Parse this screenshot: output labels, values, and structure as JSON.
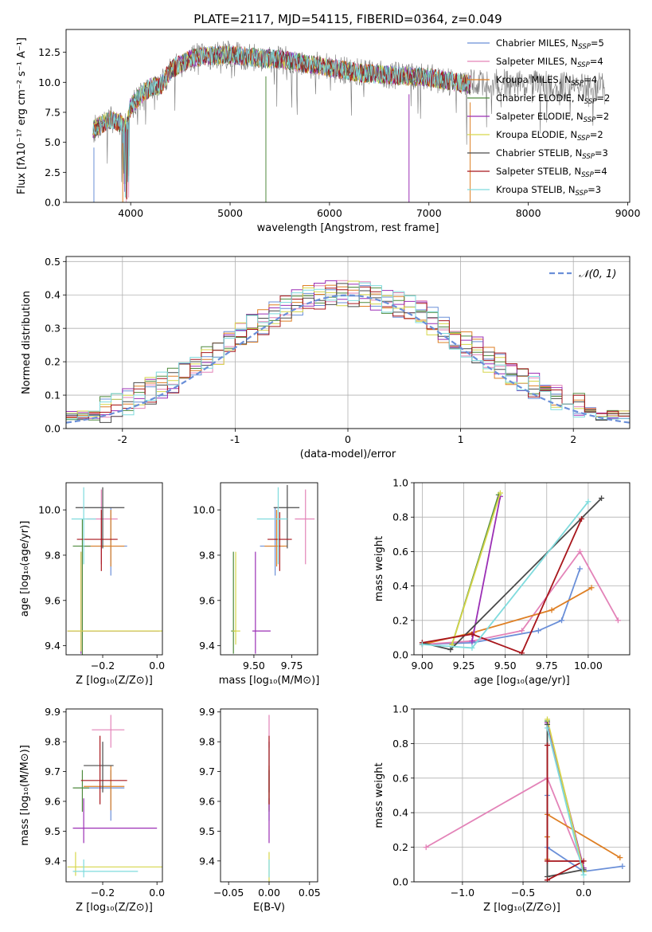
{
  "colors": [
    "#6a8fd8",
    "#e383b8",
    "#de7f24",
    "#4e8a3c",
    "#9b2fb5",
    "#d6d64a",
    "#4a4a4a",
    "#a8161c",
    "#7fdbdd"
  ],
  "gaussian_color": "#6a8fd8",
  "spectrum_color": "#777777",
  "chart_data": [
    {
      "id": "spectrum",
      "type": "line",
      "title": "PLATE=2117, MJD=54115, FIBERID=0364, z=0.049",
      "xlabel": "wavelength [Angstrom, rest frame]",
      "ylabel": "Flux [fλ10⁻¹⁷ erg cm⁻² s⁻¹ A⁻¹]",
      "xlim": [
        3350,
        9020
      ],
      "ylim": [
        0,
        14.4
      ],
      "xticks": [
        4000,
        5000,
        6000,
        7000,
        8000,
        9000
      ],
      "yticks": [
        0.0,
        2.5,
        5.0,
        7.5,
        10.0,
        12.5
      ],
      "legend_position": "top-right",
      "data_range_x": [
        3620,
        7420
      ],
      "continuum": {
        "x": [
          3620,
          3700,
          3800,
          3900,
          3950,
          4000,
          4100,
          4200,
          4300,
          4400,
          4500,
          4600,
          4800,
          5000,
          5200,
          5500,
          5800,
          6000,
          6300,
          6600,
          7000,
          7200,
          7420
        ],
        "y": [
          6.0,
          6.5,
          6.9,
          6.6,
          6.2,
          8.0,
          8.9,
          9.6,
          9.7,
          11.0,
          11.5,
          12.0,
          12.2,
          12.3,
          12.1,
          11.9,
          11.5,
          11.2,
          10.8,
          10.6,
          10.4,
          10.1,
          9.8
        ]
      },
      "legend": [
        {
          "label": "Chabrier MILES, N",
          "sub": "SSP",
          "suffix": "=5"
        },
        {
          "label": "Salpeter MILES, N",
          "sub": "SSP",
          "suffix": "=4"
        },
        {
          "label": "Kroupa MILES, N",
          "sub": "SSP",
          "suffix": "=4"
        },
        {
          "label": "Chabrier ELODIE, N",
          "sub": "SSP",
          "suffix": "=2"
        },
        {
          "label": "Salpeter ELODIE, N",
          "sub": "SSP",
          "suffix": "=2"
        },
        {
          "label": "Kroupa ELODIE, N",
          "sub": "SSP",
          "suffix": "=2"
        },
        {
          "label": "Chabrier STELIB, N",
          "sub": "SSP",
          "suffix": "=3"
        },
        {
          "label": "Salpeter STELIB, N",
          "sub": "SSP",
          "suffix": "=4"
        },
        {
          "label": "Kroupa STELIB, N",
          "sub": "SSP",
          "suffix": "=3"
        }
      ]
    },
    {
      "id": "residuals",
      "type": "line",
      "xlabel": "(data-model)/error",
      "ylabel": "Normed distribution",
      "xlim": [
        -2.5,
        2.5
      ],
      "ylim": [
        0,
        0.515
      ],
      "xticks": [
        -2,
        -1,
        0,
        1,
        2
      ],
      "yticks": [
        0.0,
        0.1,
        0.2,
        0.3,
        0.4,
        0.5
      ],
      "grid": true,
      "bin_width": 0.1,
      "legend": "𝒩(0, 1)",
      "legend_position": "top-right"
    },
    {
      "id": "age-vs-z",
      "type": "scatter",
      "xlabel": "Z [log₁₀(Z/Z⊙)]",
      "ylabel": "age  [log₁₀(age/yr)]",
      "xlim": [
        -0.335,
        0.02
      ],
      "ylim": [
        9.36,
        10.12
      ],
      "xticks": [
        -0.2,
        0.0
      ],
      "xticklabels": [
        "−0.2",
        "0.0"
      ],
      "yticks": [
        9.4,
        9.6,
        9.8,
        10.0
      ],
      "points": [
        {
          "x": -0.17,
          "xerr": [
            0.1,
            0.06
          ],
          "y": 9.84,
          "yerr": [
            0.13,
            0.17
          ]
        },
        {
          "x": -0.205,
          "xerr": [
            0.055,
            0.06
          ],
          "y": 9.96,
          "yerr": [
            0.2,
            0.13
          ]
        },
        {
          "x": -0.17,
          "xerr": [
            0.1,
            0.05
          ],
          "y": 9.84,
          "yerr": [
            0.09,
            0.16
          ]
        },
        {
          "x": -0.275,
          "xerr": [
            0.035,
            0.03
          ],
          "y": 9.84,
          "yerr": [
            0.49,
            0.12
          ]
        },
        {
          "x": -0.28,
          "xerr": [
            0.05,
            0.29
          ],
          "y": 9.465,
          "yerr": [
            0.1,
            0.35
          ]
        },
        {
          "x": -0.28,
          "xerr": [
            0.05,
            0.3
          ],
          "y": 9.465,
          "yerr": [
            0.09,
            0.35
          ]
        },
        {
          "x": -0.2,
          "xerr": [
            0.1,
            0.08
          ],
          "y": 10.01,
          "yerr": [
            0.18,
            0.09
          ]
        },
        {
          "x": -0.205,
          "xerr": [
            0.09,
            0.06
          ],
          "y": 9.87,
          "yerr": [
            0.14,
            0.13
          ]
        },
        {
          "x": -0.27,
          "xerr": [
            0.045,
            0.045
          ],
          "y": 9.96,
          "yerr": [
            0.2,
            0.14
          ]
        }
      ]
    },
    {
      "id": "age-vs-mass",
      "type": "scatter",
      "xlabel": "mass [log₁₀(M/M⊙)]",
      "ylabel": "",
      "xlim": [
        9.28,
        9.92
      ],
      "ylim": [
        9.36,
        10.12
      ],
      "xticks": [
        9.5,
        9.75
      ],
      "xticklabels": [
        "9.50",
        "9.75"
      ],
      "yticks": [
        9.4,
        9.6,
        9.8,
        10.0
      ],
      "points": [
        {
          "x": 9.64,
          "xerr": [
            0.1,
            0.06
          ],
          "y": 9.84,
          "yerr": [
            0.13,
            0.17
          ]
        },
        {
          "x": 9.84,
          "xerr": [
            0.07,
            0.06
          ],
          "y": 9.96,
          "yerr": [
            0.2,
            0.13
          ]
        },
        {
          "x": 9.65,
          "xerr": [
            0.08,
            0.07
          ],
          "y": 9.84,
          "yerr": [
            0.09,
            0.16
          ]
        },
        {
          "x": 9.365,
          "xerr": [
            0.015,
            0.015
          ],
          "y": 9.465,
          "yerr": [
            0.1,
            0.35
          ]
        },
        {
          "x": 9.51,
          "xerr": [
            0.02,
            0.1
          ],
          "y": 9.465,
          "yerr": [
            0.1,
            0.35
          ]
        },
        {
          "x": 9.38,
          "xerr": [
            0.02,
            0.03
          ],
          "y": 9.465,
          "yerr": [
            0.06,
            0.35
          ]
        },
        {
          "x": 9.72,
          "xerr": [
            0.09,
            0.08
          ],
          "y": 10.01,
          "yerr": [
            0.18,
            0.1
          ]
        },
        {
          "x": 9.67,
          "xerr": [
            0.08,
            0.08
          ],
          "y": 9.87,
          "yerr": [
            0.14,
            0.12
          ]
        },
        {
          "x": 9.66,
          "xerr": [
            0.14,
            0.06
          ],
          "y": 9.96,
          "yerr": [
            0.2,
            0.14
          ]
        }
      ]
    },
    {
      "id": "weight-vs-age",
      "type": "line",
      "xlabel": "age  [log₁₀(age/yr)]",
      "ylabel": "mass weight",
      "xlim": [
        8.95,
        10.25
      ],
      "ylim": [
        0,
        1.0
      ],
      "xticks": [
        9.0,
        9.25,
        9.5,
        9.75,
        10.0
      ],
      "xticklabels": [
        "9.00",
        "9.25",
        "9.50",
        "9.75",
        "10.00"
      ],
      "yticks": [
        0.0,
        0.2,
        0.4,
        0.6,
        0.8,
        1.0
      ],
      "grid": true,
      "series": [
        {
          "x": [
            9.0,
            9.3,
            9.7,
            9.84,
            9.95
          ],
          "y": [
            0.06,
            0.07,
            0.14,
            0.2,
            0.5
          ]
        },
        {
          "x": [
            9.0,
            9.3,
            9.6,
            9.95,
            10.18
          ],
          "y": [
            0.06,
            0.08,
            0.14,
            0.6,
            0.2
          ]
        },
        {
          "x": [
            9.0,
            9.31,
            9.78,
            10.02
          ],
          "y": [
            0.06,
            0.13,
            0.26,
            0.39
          ]
        },
        {
          "x": [
            9.18,
            9.46
          ],
          "y": [
            0.06,
            0.93
          ]
        },
        {
          "x": [
            9.3,
            9.47
          ],
          "y": [
            0.08,
            0.92
          ]
        },
        {
          "x": [
            9.18,
            9.47
          ],
          "y": [
            0.06,
            0.94
          ]
        },
        {
          "x": [
            9.0,
            9.17,
            10.08
          ],
          "y": [
            0.07,
            0.03,
            0.91
          ]
        },
        {
          "x": [
            9.0,
            9.3,
            9.6,
            9.96
          ],
          "y": [
            0.07,
            0.12,
            0.01,
            0.79
          ]
        },
        {
          "x": [
            9.0,
            9.3,
            10.0
          ],
          "y": [
            0.06,
            0.04,
            0.89
          ]
        }
      ]
    },
    {
      "id": "mass-vs-z",
      "type": "scatter",
      "xlabel": "Z [log₁₀(Z/Z⊙)]",
      "ylabel": "mass [log₁₀(M/M⊙)]",
      "xlim": [
        -0.335,
        0.02
      ],
      "ylim": [
        9.33,
        9.91
      ],
      "xticks": [
        -0.2,
        0.0
      ],
      "xticklabels": [
        "−0.2",
        "0.0"
      ],
      "yticks": [
        9.4,
        9.5,
        9.6,
        9.7,
        9.8,
        9.9
      ],
      "points": [
        {
          "x": -0.17,
          "xerr": [
            0.1,
            0.05
          ],
          "y": 9.645,
          "yerr": [
            0.11,
            0.06
          ]
        },
        {
          "x": -0.17,
          "xerr": [
            0.07,
            0.05
          ],
          "y": 9.84,
          "yerr": [
            0.06,
            0.05
          ]
        },
        {
          "x": -0.17,
          "xerr": [
            0.1,
            0.05
          ],
          "y": 9.65,
          "yerr": [
            0.08,
            0.07
          ]
        },
        {
          "x": -0.275,
          "xerr": [
            0.035,
            0.025
          ],
          "y": 9.645,
          "yerr": [
            0.08,
            0.06
          ]
        },
        {
          "x": -0.27,
          "xerr": [
            0.04,
            0.27
          ],
          "y": 9.51,
          "yerr": [
            0.05,
            0.1
          ]
        },
        {
          "x": -0.3,
          "xerr": [
            0.03,
            0.32
          ],
          "y": 9.38,
          "yerr": [
            0.03,
            0.05
          ]
        },
        {
          "x": -0.2,
          "xerr": [
            0.07,
            0.04
          ],
          "y": 9.72,
          "yerr": [
            0.09,
            0.08
          ]
        },
        {
          "x": -0.21,
          "xerr": [
            0.07,
            0.1
          ],
          "y": 9.67,
          "yerr": [
            0.08,
            0.15
          ]
        },
        {
          "x": -0.27,
          "xerr": [
            0.04,
            0.2
          ],
          "y": 9.365,
          "yerr": [
            0.02,
            0.04
          ]
        }
      ]
    },
    {
      "id": "mass-vs-ebv",
      "type": "scatter",
      "xlabel": "E(B-V)",
      "ylabel": "",
      "xlim": [
        -0.06,
        0.06
      ],
      "ylim": [
        9.33,
        9.91
      ],
      "xticks": [
        -0.05,
        0.0,
        0.05
      ],
      "xticklabels": [
        "−0.05",
        "0.00",
        "0.05"
      ],
      "yticks": [
        9.4,
        9.5,
        9.6,
        9.7,
        9.8,
        9.9
      ],
      "points": [
        {
          "x": 0.0,
          "y": 9.645,
          "yerr": [
            0.11,
            0.06
          ]
        },
        {
          "x": 0.0,
          "y": 9.84,
          "yerr": [
            0.06,
            0.05
          ]
        },
        {
          "x": 0.0,
          "y": 9.65,
          "yerr": [
            0.08,
            0.07
          ]
        },
        {
          "x": 0.0,
          "y": 9.645,
          "yerr": [
            0.08,
            0.06
          ]
        },
        {
          "x": 0.0,
          "y": 9.51,
          "yerr": [
            0.05,
            0.1
          ]
        },
        {
          "x": 0.0,
          "y": 9.38,
          "yerr": [
            0.05,
            0.05
          ]
        },
        {
          "x": 0.0,
          "y": 9.72,
          "yerr": [
            0.09,
            0.08
          ]
        },
        {
          "x": 0.0,
          "y": 9.67,
          "yerr": [
            0.08,
            0.15
          ]
        },
        {
          "x": 0.0,
          "y": 9.365,
          "yerr": [
            0.02,
            0.04
          ]
        }
      ]
    },
    {
      "id": "weight-vs-z",
      "type": "line",
      "xlabel": "Z [log₁₀(Z/Z⊙)]",
      "ylabel": "mass weight",
      "xlim": [
        -1.4,
        0.38
      ],
      "ylim": [
        0,
        1.0
      ],
      "xticks": [
        -1.0,
        -0.5,
        0.0
      ],
      "xticklabels": [
        "−1.0",
        "−0.5",
        "0.0"
      ],
      "yticks": [
        0.0,
        0.2,
        0.4,
        0.6,
        0.8,
        1.0
      ],
      "grid": true,
      "series": [
        {
          "x": [
            0.32,
            0.0,
            -0.3,
            -0.3
          ],
          "y": [
            0.09,
            0.06,
            0.2,
            0.5
          ]
        },
        {
          "x": [
            -1.3,
            -0.3,
            0.0,
            0.0
          ],
          "y": [
            0.2,
            0.6,
            0.08,
            0.06
          ]
        },
        {
          "x": [
            0.3,
            -0.3,
            -0.3,
            -0.3
          ],
          "y": [
            0.14,
            0.39,
            0.26,
            0.13
          ]
        },
        {
          "x": [
            -0.3,
            0.0
          ],
          "y": [
            0.93,
            0.06
          ]
        },
        {
          "x": [
            -0.3,
            0.0
          ],
          "y": [
            0.92,
            0.08
          ]
        },
        {
          "x": [
            -0.3,
            0.0
          ],
          "y": [
            0.94,
            0.06
          ]
        },
        {
          "x": [
            -0.3,
            -0.3,
            0.0
          ],
          "y": [
            0.91,
            0.03,
            0.07
          ]
        },
        {
          "x": [
            -0.3,
            -0.3,
            0.0,
            -0.3
          ],
          "y": [
            0.79,
            0.12,
            0.12,
            0.01
          ]
        },
        {
          "x": [
            -0.3,
            0.0
          ],
          "y": [
            0.89,
            0.04
          ]
        }
      ]
    }
  ]
}
